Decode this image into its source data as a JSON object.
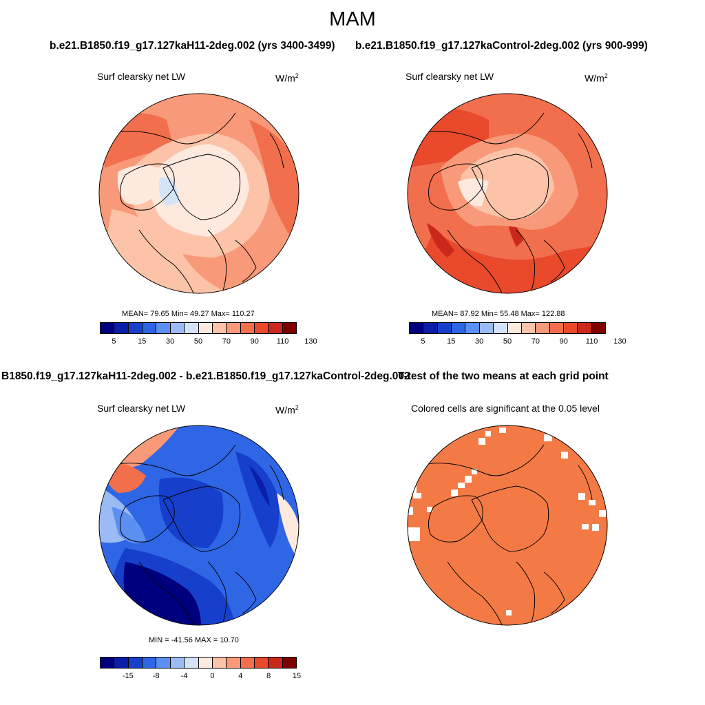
{
  "title": "MAM",
  "case1_title": "b.e21.B1850.f19_g17.127kaH11-2deg.002 (yrs 3400-3499)",
  "case2_title": "b.e21.B1850.f19_g17.127kaControl-2deg.002 (yrs 900-999)",
  "diff_title": "B1850.f19_g17.127kaH11-2deg.002 - b.e21.B1850.f19_g17.127kaControl-2deg.002",
  "ttest_title": "T-test of the two means at each grid point",
  "panels": {
    "p1": {
      "subtitle": "Surf clearsky net LW",
      "unit": "W/m",
      "unit_exp": "2",
      "stats": "MEAN=  79.65  Min=  49.27  Max= 110.27"
    },
    "p2": {
      "subtitle": "Surf clearsky net LW",
      "unit": "W/m",
      "unit_exp": "2",
      "stats": "MEAN=  87.92  Min=  55.48  Max= 122.88"
    },
    "p3": {
      "subtitle": "Surf clearsky net LW",
      "unit": "W/m",
      "unit_exp": "2",
      "stats": "MIN = -41.56 MAX =  10.70"
    },
    "p4": {
      "subtitle": "Colored cells are significant at the 0.05 level"
    }
  },
  "colorbar_abs": {
    "colors": [
      "#00007f",
      "#0a1ea8",
      "#1640cc",
      "#2f66e6",
      "#5b8ff2",
      "#9bbbf5",
      "#d5e3f8",
      "#fde9dd",
      "#fcc3a8",
      "#f89a79",
      "#f26f4d",
      "#e84a2b",
      "#c9281a",
      "#7f0000"
    ],
    "ticks": [
      "5",
      "15",
      "30",
      "50",
      "70",
      "90",
      "110",
      "130"
    ]
  },
  "colorbar_diff": {
    "colors": [
      "#00007f",
      "#0a1ea8",
      "#1640cc",
      "#2f66e6",
      "#5b8ff2",
      "#9bbbf5",
      "#d5e3f8",
      "#fde9dd",
      "#fcc3a8",
      "#f89a79",
      "#f26f4d",
      "#e84a2b",
      "#c9281a",
      "#7f0000"
    ],
    "ticks": [
      "-15",
      "-8",
      "-4",
      "0",
      "4",
      "8",
      "15"
    ]
  }
}
